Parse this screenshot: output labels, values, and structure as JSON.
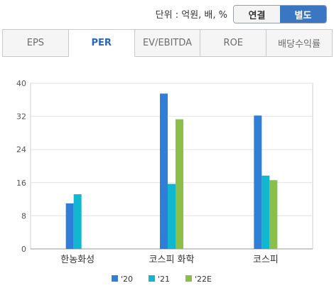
{
  "header": {
    "unit_label": "단위 : 억원, 배, %",
    "toggle": [
      {
        "label": "연결",
        "active": false
      },
      {
        "label": "별도",
        "active": true
      }
    ]
  },
  "tabs": [
    {
      "label": "EPS",
      "active": false
    },
    {
      "label": "PER",
      "active": true
    },
    {
      "label": "EV/EBITDA",
      "active": false
    },
    {
      "label": "ROE",
      "active": false
    },
    {
      "label": "배당수익률",
      "active": false
    }
  ],
  "chart_data": {
    "type": "bar",
    "categories": [
      "한농화성",
      "코스피 화학",
      "코스피"
    ],
    "series": [
      {
        "name": "'20",
        "color": "#2f7ed8",
        "values": [
          11,
          37.5,
          32.2
        ]
      },
      {
        "name": "'21",
        "color": "#11b7cf",
        "values": [
          13.2,
          15.7,
          17.7
        ]
      },
      {
        "name": "'22E",
        "color": "#8bbf4a",
        "values": [
          null,
          31.3,
          16.6
        ]
      }
    ],
    "yticks": [
      0,
      8,
      16,
      24,
      32,
      40
    ],
    "ylim": [
      0,
      40
    ],
    "grid": true,
    "legend_position": "bottom"
  }
}
